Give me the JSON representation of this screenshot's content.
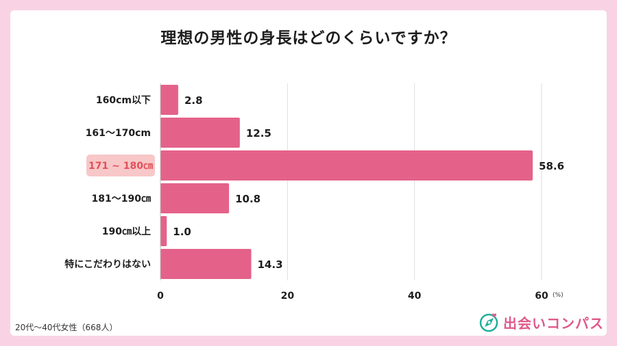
{
  "title": "理想の男性の身長はどのくらいですか？",
  "note": "20代〜40代女性（668人）",
  "logo": {
    "text": "出会いコンパス",
    "icon": "compass-heart-icon"
  },
  "colors": {
    "bar": "#e4628a",
    "highlight_bg": "#f8c7c8",
    "highlight_text": "#e0505a",
    "grid": "#dddddd",
    "page_bg": "#f9d3e3"
  },
  "chart_data": {
    "type": "bar",
    "orientation": "horizontal",
    "title": "理想の男性の身長はどのくらいですか？",
    "categories": [
      "160cm以下",
      "161〜170cm",
      "171 ~ 180㎝",
      "181〜190㎝",
      "190㎝以上",
      "特にこだわりはない"
    ],
    "values": [
      2.8,
      12.5,
      58.6,
      10.8,
      1.0,
      14.3
    ],
    "value_labels": [
      "2.8",
      "12.5",
      "58.6",
      "10.8",
      "1.0",
      "14.3"
    ],
    "highlight_index": 2,
    "xlim": [
      0,
      60
    ],
    "xticks": [
      "0",
      "20",
      "40",
      "60"
    ],
    "xtick_values": [
      0,
      20,
      40,
      60
    ],
    "unit": "(%)",
    "grid": true
  }
}
